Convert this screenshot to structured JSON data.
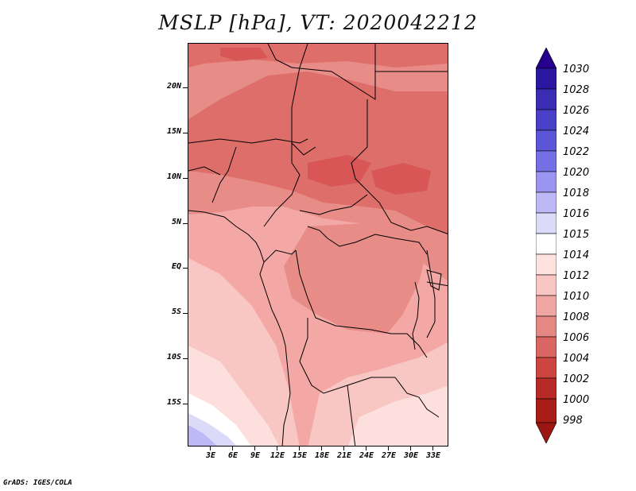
{
  "title": "MSLP [hPa], VT: 2020042212",
  "credit": "GrADS: IGES/COLA",
  "lat_labels": [
    "20N",
    "15N",
    "10N",
    "5N",
    "EQ",
    "5S",
    "10S",
    "15S"
  ],
  "lon_labels": [
    "3E",
    "6E",
    "9E",
    "12E",
    "15E",
    "18E",
    "21E",
    "24E",
    "27E",
    "30E",
    "33E"
  ],
  "colorbar": {
    "labels": [
      "1030",
      "1028",
      "1026",
      "1024",
      "1022",
      "1020",
      "1018",
      "1016",
      "1015",
      "1014",
      "1012",
      "1010",
      "1008",
      "1006",
      "1004",
      "1002",
      "1000",
      "998"
    ],
    "colors_top_to_bottom": [
      "#24008c",
      "#2c18a0",
      "#3a2db4",
      "#4a40c8",
      "#5b55d8",
      "#7570e6",
      "#9a95f0",
      "#bdb9f6",
      "#dcdaf9",
      "#ffffff",
      "#fde2e0",
      "#f8c7c4",
      "#f0a7a3",
      "#e58883",
      "#d96662",
      "#cc4540",
      "#b82a25",
      "#9c1613"
    ]
  },
  "map": {
    "field": "MSLP",
    "units": "hPa",
    "low_pressure_color": "#dc5050",
    "high_pressure_color": "#c8c8f5"
  }
}
